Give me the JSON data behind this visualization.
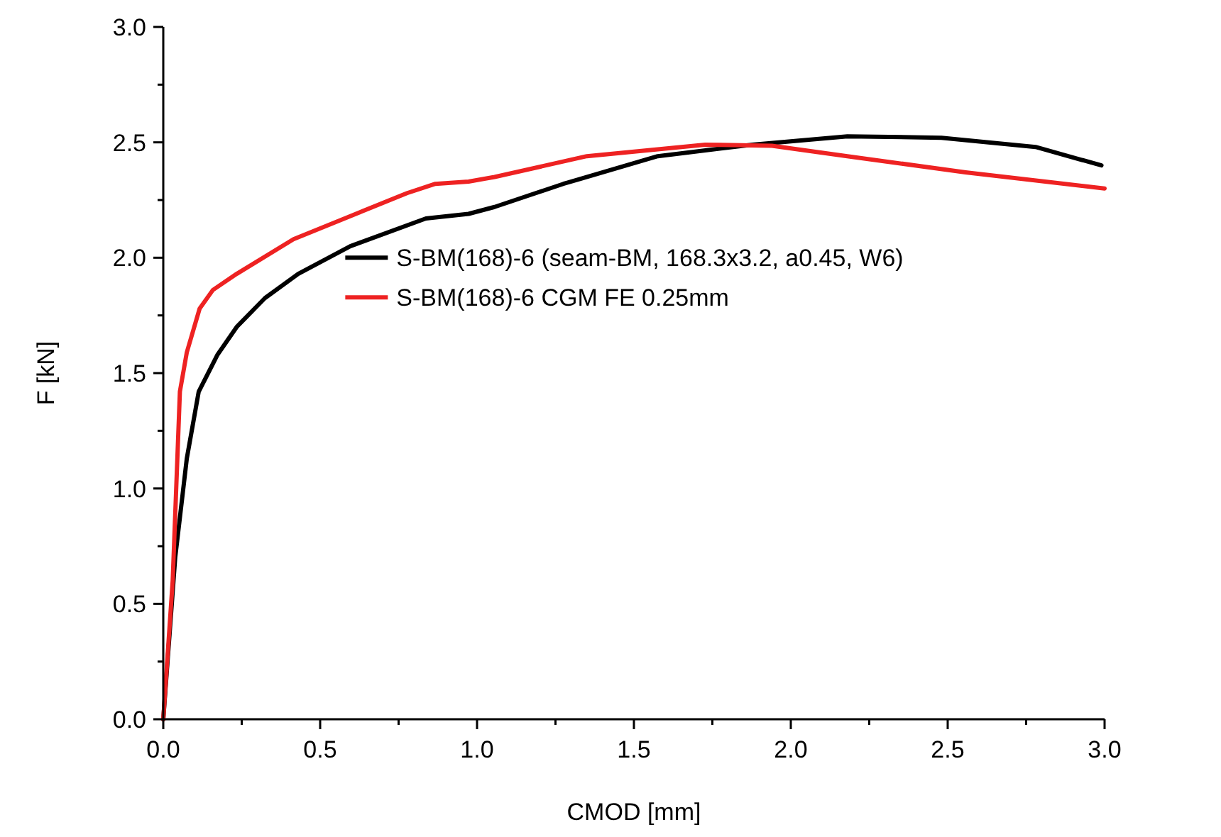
{
  "chart_data": {
    "type": "line",
    "xlabel": "CMOD [mm]",
    "ylabel": "F [kN]",
    "xlim": [
      0,
      3
    ],
    "ylim": [
      0,
      3
    ],
    "xticks": [
      {
        "value": 0,
        "label": "0.0"
      },
      {
        "value": 0.25,
        "label": null
      },
      {
        "value": 0.5,
        "label": "0.5"
      },
      {
        "value": 0.75,
        "label": null
      },
      {
        "value": 1,
        "label": "1.0"
      },
      {
        "value": 1.25,
        "label": null
      },
      {
        "value": 1.5,
        "label": "1.5"
      },
      {
        "value": 1.75,
        "label": null
      },
      {
        "value": 2,
        "label": "2.0"
      },
      {
        "value": 2.25,
        "label": null
      },
      {
        "value": 2.5,
        "label": "2.5"
      },
      {
        "value": 2.75,
        "label": null
      },
      {
        "value": 3,
        "label": "3.0"
      }
    ],
    "yticks": [
      {
        "value": 0,
        "label": "0.0"
      },
      {
        "value": 0.25,
        "label": null
      },
      {
        "value": 0.5,
        "label": "0.5"
      },
      {
        "value": 0.75,
        "label": null
      },
      {
        "value": 1,
        "label": "1.0"
      },
      {
        "value": 1.25,
        "label": null
      },
      {
        "value": 1.5,
        "label": "1.5"
      },
      {
        "value": 1.75,
        "label": null
      },
      {
        "value": 2,
        "label": "2.0"
      },
      {
        "value": 2.25,
        "label": null
      },
      {
        "value": 2.5,
        "label": "2.5"
      },
      {
        "value": 2.75,
        "label": null
      },
      {
        "value": 3,
        "label": "3.0"
      }
    ],
    "grid": false,
    "legend": "right",
    "line_style": "solid",
    "series": [
      {
        "name": "S-BM(168)-6 (seam-BM, 168.3x3.2, a0.45, W6)",
        "color": "#000000",
        "x": [
          0,
          0.038,
          0.075,
          0.113,
          0.173,
          0.234,
          0.324,
          0.43,
          0.596,
          0.837,
          0.973,
          1.056,
          1.275,
          1.576,
          1.878,
          2.18,
          2.48,
          2.78,
          2.99
        ],
        "values": [
          0,
          0.7,
          1.13,
          1.42,
          1.58,
          1.7,
          1.825,
          1.93,
          2.05,
          2.17,
          2.19,
          2.22,
          2.32,
          2.44,
          2.49,
          2.526,
          2.52,
          2.48,
          2.4
        ]
      },
      {
        "name": "S-BM(168)-6 CGM FE 0.25mm",
        "color": "#ee2222",
        "x": [
          0,
          0.03,
          0.053,
          0.075,
          0.116,
          0.158,
          0.234,
          0.415,
          0.596,
          0.777,
          0.867,
          0.973,
          1.056,
          1.35,
          1.727,
          1.94,
          2.18,
          2.557,
          3.0
        ],
        "values": [
          0,
          0.6,
          1.42,
          1.59,
          1.78,
          1.86,
          1.93,
          2.08,
          2.18,
          2.28,
          2.32,
          2.33,
          2.35,
          2.44,
          2.49,
          2.485,
          2.44,
          2.37,
          2.3
        ]
      }
    ]
  }
}
